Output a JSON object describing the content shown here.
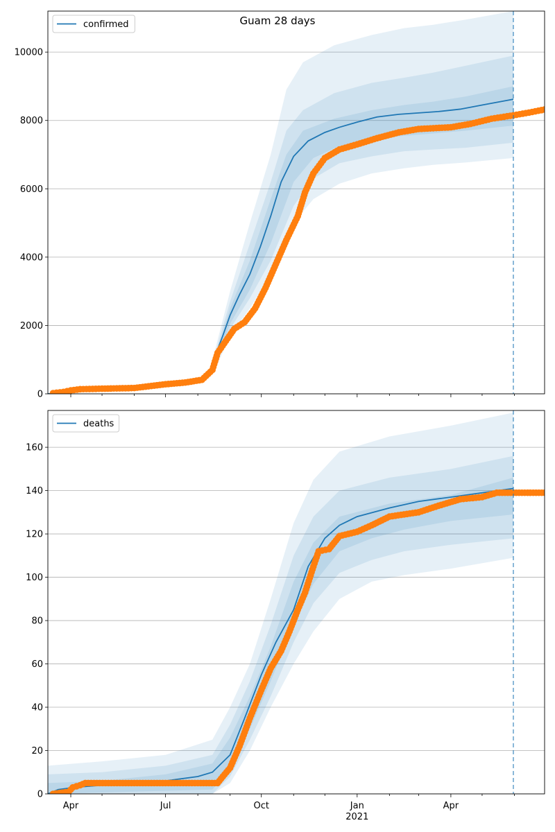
{
  "title": "Guam 28 days",
  "colors": {
    "model": "#1f77b4",
    "observed": "#ff7f0e",
    "grid": "#b0b0b0",
    "band": "#1f77b4"
  },
  "chart_data": [
    {
      "type": "line",
      "legend": "confirmed",
      "legend_position": "top-left",
      "grid": "horizontal",
      "xlim": [
        "2020-03-10",
        "2021-06-30"
      ],
      "ylim": [
        0,
        11200
      ],
      "yticks": [
        0,
        2000,
        4000,
        6000,
        8000,
        10000
      ],
      "forecast_start": "2021-05-31",
      "model_median": [
        [
          "2020-03-10",
          0
        ],
        [
          "2020-04-15",
          120
        ],
        [
          "2020-05-15",
          160
        ],
        [
          "2020-06-15",
          200
        ],
        [
          "2020-07-15",
          300
        ],
        [
          "2020-08-01",
          380
        ],
        [
          "2020-08-10",
          520
        ],
        [
          "2020-08-16",
          800
        ],
        [
          "2020-08-20",
          1300
        ],
        [
          "2020-08-25",
          1700
        ],
        [
          "2020-09-01",
          2300
        ],
        [
          "2020-09-10",
          2900
        ],
        [
          "2020-09-20",
          3500
        ],
        [
          "2020-09-30",
          4300
        ],
        [
          "2020-10-10",
          5200
        ],
        [
          "2020-10-20",
          6200
        ],
        [
          "2020-11-01",
          6950
        ],
        [
          "2020-11-15",
          7400
        ],
        [
          "2020-12-01",
          7650
        ],
        [
          "2020-12-15",
          7800
        ],
        [
          "2021-01-01",
          7950
        ],
        [
          "2021-01-20",
          8100
        ],
        [
          "2021-02-10",
          8180
        ],
        [
          "2021-03-01",
          8220
        ],
        [
          "2021-03-20",
          8260
        ],
        [
          "2021-04-10",
          8330
        ],
        [
          "2021-05-01",
          8450
        ],
        [
          "2021-05-31",
          8620
        ]
      ],
      "bands": [
        {
          "name": "outer",
          "lower": [
            [
              "2020-08-16",
              600
            ],
            [
              "2020-09-01",
              1700
            ],
            [
              "2020-09-20",
              2500
            ],
            [
              "2020-10-10",
              3500
            ],
            [
              "2020-11-01",
              5000
            ],
            [
              "2020-11-20",
              5700
            ],
            [
              "2020-12-15",
              6150
            ],
            [
              "2021-01-15",
              6450
            ],
            [
              "2021-02-15",
              6600
            ],
            [
              "2021-03-15",
              6700
            ],
            [
              "2021-04-15",
              6770
            ],
            [
              "2021-05-31",
              6900
            ]
          ],
          "upper": [
            [
              "2020-08-16",
              1100
            ],
            [
              "2020-09-01",
              3000
            ],
            [
              "2020-09-20",
              5000
            ],
            [
              "2020-10-10",
              7000
            ],
            [
              "2020-10-25",
              8900
            ],
            [
              "2020-11-10",
              9700
            ],
            [
              "2020-12-10",
              10200
            ],
            [
              "2021-01-15",
              10500
            ],
            [
              "2021-02-15",
              10700
            ],
            [
              "2021-03-15",
              10800
            ],
            [
              "2021-04-15",
              10950
            ],
            [
              "2021-05-31",
              11200
            ]
          ]
        },
        {
          "name": "middle",
          "lower": [
            [
              "2020-08-16",
              650
            ],
            [
              "2020-09-01",
              1900
            ],
            [
              "2020-09-20",
              2800
            ],
            [
              "2020-10-10",
              3900
            ],
            [
              "2020-11-01",
              5500
            ],
            [
              "2020-11-20",
              6300
            ],
            [
              "2020-12-15",
              6750
            ],
            [
              "2021-01-15",
              6950
            ],
            [
              "2021-02-15",
              7100
            ],
            [
              "2021-03-15",
              7150
            ],
            [
              "2021-04-15",
              7200
            ],
            [
              "2021-05-31",
              7350
            ]
          ],
          "upper": [
            [
              "2020-08-16",
              1000
            ],
            [
              "2020-09-01",
              2700
            ],
            [
              "2020-09-20",
              4400
            ],
            [
              "2020-10-10",
              6200
            ],
            [
              "2020-10-25",
              7700
            ],
            [
              "2020-11-10",
              8300
            ],
            [
              "2020-12-10",
              8800
            ],
            [
              "2021-01-15",
              9100
            ],
            [
              "2021-02-15",
              9250
            ],
            [
              "2021-03-15",
              9400
            ],
            [
              "2021-04-15",
              9600
            ],
            [
              "2021-05-31",
              9900
            ]
          ]
        },
        {
          "name": "inner",
          "lower": [
            [
              "2020-08-16",
              700
            ],
            [
              "2020-09-01",
              2050
            ],
            [
              "2020-09-20",
              3050
            ],
            [
              "2020-10-10",
              4400
            ],
            [
              "2020-11-01",
              6200
            ],
            [
              "2020-11-20",
              6900
            ],
            [
              "2020-12-15",
              7250
            ],
            [
              "2021-01-15",
              7450
            ],
            [
              "2021-02-15",
              7550
            ],
            [
              "2021-03-15",
              7620
            ],
            [
              "2021-04-15",
              7700
            ],
            [
              "2021-05-31",
              7850
            ]
          ],
          "upper": [
            [
              "2020-08-16",
              900
            ],
            [
              "2020-09-01",
              2500
            ],
            [
              "2020-09-20",
              3900
            ],
            [
              "2020-10-10",
              5700
            ],
            [
              "2020-10-25",
              7000
            ],
            [
              "2020-11-10",
              7700
            ],
            [
              "2020-12-10",
              8050
            ],
            [
              "2021-01-15",
              8300
            ],
            [
              "2021-02-15",
              8450
            ],
            [
              "2021-03-15",
              8550
            ],
            [
              "2021-04-15",
              8700
            ],
            [
              "2021-05-31",
              9000
            ]
          ]
        }
      ],
      "observed": [
        [
          "2020-03-15",
          20
        ],
        [
          "2020-03-25",
          55
        ],
        [
          "2020-04-01",
          100
        ],
        [
          "2020-04-10",
          135
        ],
        [
          "2020-05-01",
          150
        ],
        [
          "2020-06-01",
          170
        ],
        [
          "2020-07-01",
          280
        ],
        [
          "2020-07-20",
          330
        ],
        [
          "2020-08-05",
          410
        ],
        [
          "2020-08-15",
          700
        ],
        [
          "2020-08-20",
          1200
        ],
        [
          "2020-08-28",
          1550
        ],
        [
          "2020-09-05",
          1900
        ],
        [
          "2020-09-15",
          2100
        ],
        [
          "2020-09-25",
          2500
        ],
        [
          "2020-10-05",
          3100
        ],
        [
          "2020-10-15",
          3800
        ],
        [
          "2020-10-25",
          4500
        ],
        [
          "2020-11-05",
          5200
        ],
        [
          "2020-11-12",
          5900
        ],
        [
          "2020-11-20",
          6450
        ],
        [
          "2020-12-01",
          6900
        ],
        [
          "2020-12-15",
          7150
        ],
        [
          "2021-01-01",
          7300
        ],
        [
          "2021-01-20",
          7480
        ],
        [
          "2021-02-10",
          7650
        ],
        [
          "2021-03-01",
          7750
        ],
        [
          "2021-04-01",
          7800
        ],
        [
          "2021-04-20",
          7900
        ],
        [
          "2021-05-10",
          8050
        ],
        [
          "2021-05-31",
          8150
        ],
        [
          "2021-06-15",
          8230
        ],
        [
          "2021-06-30",
          8320
        ]
      ]
    },
    {
      "type": "line",
      "legend": "deaths",
      "legend_position": "top-left",
      "grid": "horizontal",
      "xlim": [
        "2020-03-10",
        "2021-06-30"
      ],
      "ylim": [
        0,
        177
      ],
      "yticks": [
        0,
        20,
        40,
        60,
        80,
        100,
        120,
        140,
        160
      ],
      "xticks": [
        "Apr",
        "Jul",
        "Oct",
        "Jan",
        "Apr"
      ],
      "xtick_dates": [
        "2020-04-01",
        "2020-07-01",
        "2020-10-01",
        "2021-01-01",
        "2021-04-01"
      ],
      "x_year_label": "2021",
      "forecast_start": "2021-05-31",
      "model_median": [
        [
          "2020-03-10",
          0
        ],
        [
          "2020-03-20",
          2
        ],
        [
          "2020-04-05",
          3
        ],
        [
          "2020-05-01",
          4
        ],
        [
          "2020-06-01",
          5
        ],
        [
          "2020-07-01",
          6
        ],
        [
          "2020-08-01",
          8
        ],
        [
          "2020-08-15",
          10
        ],
        [
          "2020-09-01",
          18
        ],
        [
          "2020-09-15",
          35
        ],
        [
          "2020-10-01",
          55
        ],
        [
          "2020-10-15",
          70
        ],
        [
          "2020-11-01",
          85
        ],
        [
          "2020-11-15",
          105
        ],
        [
          "2020-12-01",
          118
        ],
        [
          "2020-12-15",
          124
        ],
        [
          "2021-01-01",
          128
        ],
        [
          "2021-02-01",
          132
        ],
        [
          "2021-03-01",
          135
        ],
        [
          "2021-04-01",
          137
        ],
        [
          "2021-05-01",
          139
        ],
        [
          "2021-05-31",
          141
        ]
      ],
      "bands": [
        {
          "name": "outer",
          "lower": [
            [
              "2020-03-10",
              0
            ],
            [
              "2020-08-15",
              0
            ],
            [
              "2020-09-01",
              5
            ],
            [
              "2020-09-20",
              20
            ],
            [
              "2020-10-10",
              40
            ],
            [
              "2020-11-01",
              60
            ],
            [
              "2020-11-20",
              75
            ],
            [
              "2020-12-15",
              90
            ],
            [
              "2021-01-15",
              98
            ],
            [
              "2021-02-15",
              101
            ],
            [
              "2021-04-01",
              104
            ],
            [
              "2021-05-31",
              109
            ]
          ],
          "upper": [
            [
              "2020-03-10",
              13
            ],
            [
              "2020-05-01",
              15
            ],
            [
              "2020-07-01",
              18
            ],
            [
              "2020-08-15",
              25
            ],
            [
              "2020-09-01",
              40
            ],
            [
              "2020-09-20",
              60
            ],
            [
              "2020-10-10",
              90
            ],
            [
              "2020-11-01",
              125
            ],
            [
              "2020-11-20",
              145
            ],
            [
              "2020-12-15",
              158
            ],
            [
              "2021-02-01",
              165
            ],
            [
              "2021-04-01",
              170
            ],
            [
              "2021-05-31",
              176
            ]
          ]
        },
        {
          "name": "middle",
          "lower": [
            [
              "2020-03-10",
              0
            ],
            [
              "2020-08-15",
              0
            ],
            [
              "2020-09-01",
              8
            ],
            [
              "2020-09-20",
              25
            ],
            [
              "2020-10-10",
              45
            ],
            [
              "2020-11-01",
              70
            ],
            [
              "2020-11-20",
              88
            ],
            [
              "2020-12-15",
              102
            ],
            [
              "2021-01-15",
              108
            ],
            [
              "2021-02-15",
              112
            ],
            [
              "2021-04-01",
              115
            ],
            [
              "2021-05-31",
              118
            ]
          ],
          "upper": [
            [
              "2020-03-10",
              9
            ],
            [
              "2020-05-01",
              10
            ],
            [
              "2020-07-01",
              13
            ],
            [
              "2020-08-15",
              18
            ],
            [
              "2020-09-01",
              32
            ],
            [
              "2020-09-20",
              52
            ],
            [
              "2020-10-10",
              78
            ],
            [
              "2020-11-01",
              110
            ],
            [
              "2020-11-20",
              128
            ],
            [
              "2020-12-15",
              140
            ],
            [
              "2021-02-01",
              146
            ],
            [
              "2021-04-01",
              150
            ],
            [
              "2021-05-31",
              156
            ]
          ]
        },
        {
          "name": "inner",
          "lower": [
            [
              "2020-03-10",
              0
            ],
            [
              "2020-08-15",
              2
            ],
            [
              "2020-09-01",
              12
            ],
            [
              "2020-09-20",
              30
            ],
            [
              "2020-10-10",
              52
            ],
            [
              "2020-11-01",
              78
            ],
            [
              "2020-11-20",
              97
            ],
            [
              "2020-12-15",
              112
            ],
            [
              "2021-01-15",
              118
            ],
            [
              "2021-02-15",
              122
            ],
            [
              "2021-04-01",
              126
            ],
            [
              "2021-05-31",
              129
            ]
          ],
          "upper": [
            [
              "2020-03-10",
              5
            ],
            [
              "2020-05-01",
              6
            ],
            [
              "2020-07-01",
              9
            ],
            [
              "2020-08-15",
              14
            ],
            [
              "2020-09-01",
              26
            ],
            [
              "2020-09-20",
              45
            ],
            [
              "2020-10-10",
              68
            ],
            [
              "2020-11-01",
              98
            ],
            [
              "2020-11-20",
              116
            ],
            [
              "2020-12-15",
              128
            ],
            [
              "2021-02-01",
              134
            ],
            [
              "2021-04-01",
              138
            ],
            [
              "2021-05-31",
              146
            ]
          ]
        }
      ],
      "observed": [
        [
          "2020-03-15",
          0
        ],
        [
          "2020-03-30",
          1
        ],
        [
          "2020-04-03",
          3
        ],
        [
          "2020-04-10",
          4
        ],
        [
          "2020-04-15",
          5
        ],
        [
          "2020-06-01",
          5
        ],
        [
          "2020-07-01",
          5
        ],
        [
          "2020-08-01",
          5
        ],
        [
          "2020-08-20",
          5
        ],
        [
          "2020-08-25",
          8
        ],
        [
          "2020-09-01",
          12
        ],
        [
          "2020-09-10",
          22
        ],
        [
          "2020-09-20",
          35
        ],
        [
          "2020-10-01",
          48
        ],
        [
          "2020-10-10",
          58
        ],
        [
          "2020-10-20",
          66
        ],
        [
          "2020-10-28",
          75
        ],
        [
          "2020-11-05",
          85
        ],
        [
          "2020-11-12",
          93
        ],
        [
          "2020-11-20",
          105
        ],
        [
          "2020-11-25",
          112
        ],
        [
          "2020-12-05",
          113
        ],
        [
          "2020-12-15",
          119
        ],
        [
          "2021-01-01",
          121
        ],
        [
          "2021-01-15",
          124
        ],
        [
          "2021-02-01",
          128
        ],
        [
          "2021-03-01",
          130
        ],
        [
          "2021-03-20",
          133
        ],
        [
          "2021-04-10",
          136
        ],
        [
          "2021-05-01",
          137
        ],
        [
          "2021-05-15",
          139
        ],
        [
          "2021-05-31",
          139
        ],
        [
          "2021-06-30",
          139
        ]
      ]
    }
  ]
}
